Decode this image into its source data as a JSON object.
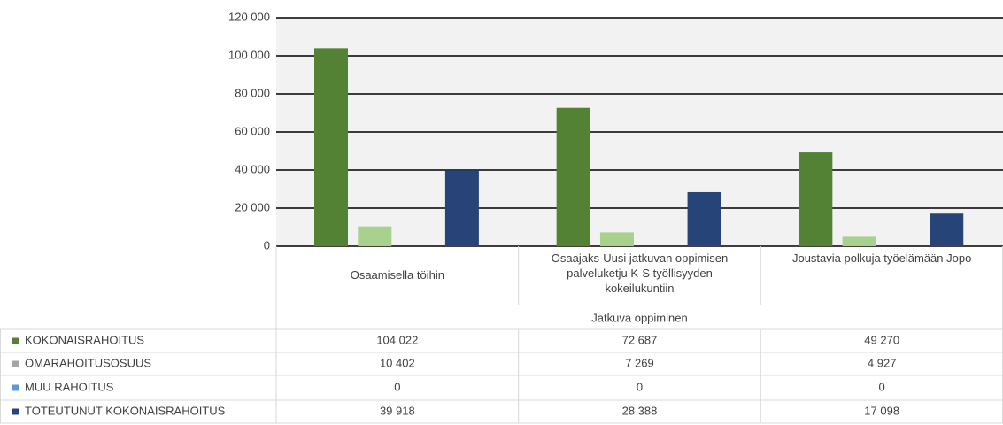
{
  "chart_data": {
    "type": "bar",
    "categories": [
      "Osaamisella töihin",
      "Osaajaks-Uusi jatkuvan oppimisen palveluketju K-S työllisyyden kokeilukuntiin",
      "Joustavia polkuja työelämään Jopo"
    ],
    "category_group": "Jatkuva oppiminen",
    "series": [
      {
        "name": "KOKONAISRAHOITUS",
        "color": "#548235",
        "legend_color": "#548235",
        "values": [
          104022,
          72687,
          49270
        ],
        "value_labels": [
          "104 022",
          "72 687",
          "49 270"
        ]
      },
      {
        "name": "OMARAHOITUSOSUUS",
        "color": "#a9d18e",
        "legend_color": "#a5a5a5",
        "values": [
          10402,
          7269,
          4927
        ],
        "value_labels": [
          "10 402",
          "7 269",
          "4 927"
        ]
      },
      {
        "name": "MUU RAHOITUS",
        "color": "#5b9bd5",
        "legend_color": "#5b9bd5",
        "values": [
          0,
          0,
          0
        ]
      },
      {
        "name": "TOTEUTUNUT KOKONAISRAHOITUS",
        "color": "#264478",
        "legend_color": "#264478",
        "values": [
          39918,
          28388,
          17098
        ],
        "value_labels": [
          "39 918",
          "28 388",
          "17 098"
        ]
      }
    ],
    "ylim": [
      0,
      120000
    ],
    "yticks": [
      0,
      {
        "value": 20000,
        "label": "20 000"
      },
      {
        "value": 40000,
        "label": "40 000"
      },
      {
        "value": 60000,
        "label": "60 000"
      },
      {
        "value": 80000,
        "label": "80 000"
      },
      {
        "value": 100000,
        "label": "100 000"
      },
      {
        "value": 120000,
        "label": "120 000"
      }
    ],
    "grid": true
  }
}
